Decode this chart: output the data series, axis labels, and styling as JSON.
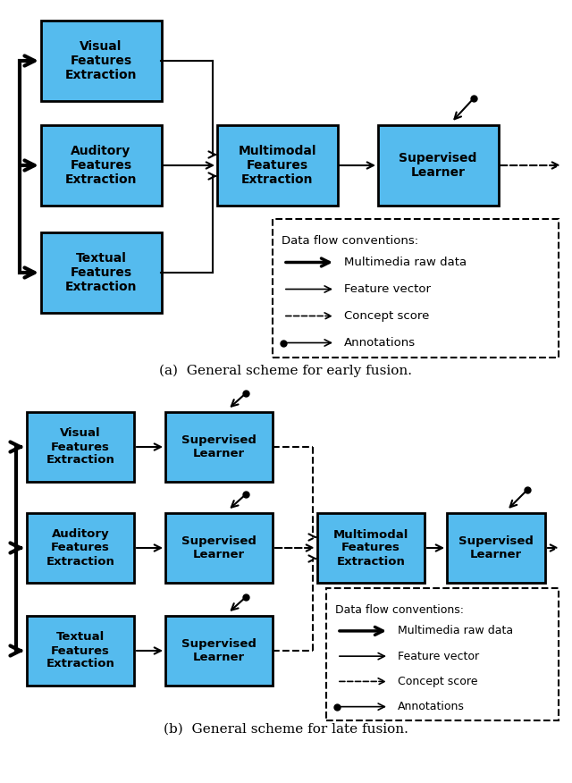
{
  "bg_color": "#ffffff",
  "box_color": "#55bbee",
  "box_edge_color": "#000000",
  "text_color": "#000000",
  "fig_width": 6.4,
  "fig_height": 8.76,
  "caption_a": "(a)  General scheme for early fusion.",
  "caption_b": "(b)  General scheme for late fusion.",
  "legend_title": "Data flow conventions:",
  "legend_items": [
    {
      "label": "Multimedia raw data",
      "style": "thick_arrow"
    },
    {
      "label": "Feature vector",
      "style": "thin_arrow"
    },
    {
      "label": "Concept score",
      "style": "dashed_arrow"
    },
    {
      "label": "Annotations",
      "style": "dot_arrow"
    }
  ]
}
